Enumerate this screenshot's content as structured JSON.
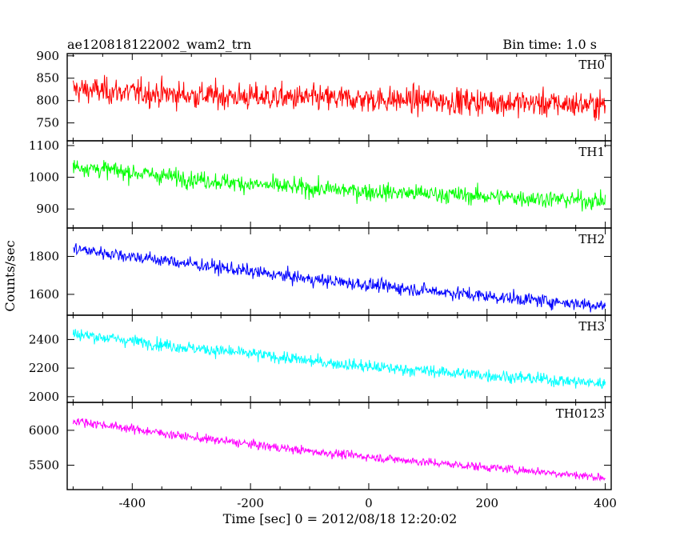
{
  "chart_data": {
    "type": "line",
    "title": "ae120818122002_wam2_trn",
    "subtitle": "Bin time: 1.0 s",
    "xlabel": "Time [sec] 0 = 2012/08/18 12:20:02",
    "ylabel": "Counts/sec",
    "xlim": [
      -510,
      410
    ],
    "xticks": [
      -400,
      -200,
      0,
      200,
      400
    ],
    "panels": [
      {
        "name": "TH0",
        "color": "#ff0000",
        "ylim": [
          710,
          905
        ],
        "yticks": [
          750,
          800,
          850,
          900
        ],
        "x": [
          -500,
          -400,
          -300,
          -200,
          -100,
          0,
          100,
          200,
          300,
          400
        ],
        "y": [
          825,
          818,
          812,
          808,
          805,
          803,
          800,
          797,
          793,
          790
        ],
        "noise": 38
      },
      {
        "name": "TH1",
        "color": "#00ff00",
        "ylim": [
          840,
          1115
        ],
        "yticks": [
          900,
          1000,
          1100
        ],
        "x": [
          -500,
          -400,
          -300,
          -200,
          -100,
          0,
          100,
          200,
          300,
          400
        ],
        "y": [
          1035,
          1015,
          995,
          978,
          965,
          955,
          948,
          940,
          932,
          925
        ],
        "noise": 35
      },
      {
        "name": "TH2",
        "color": "#0000ff",
        "ylim": [
          1490,
          1950
        ],
        "yticks": [
          1600,
          1800
        ],
        "x": [
          -500,
          -400,
          -300,
          -200,
          -100,
          0,
          100,
          200,
          300,
          400
        ],
        "y": [
          1840,
          1800,
          1760,
          1720,
          1680,
          1650,
          1620,
          1590,
          1565,
          1540
        ],
        "noise": 45
      },
      {
        "name": "TH3",
        "color": "#00ffff",
        "ylim": [
          1960,
          2570
        ],
        "yticks": [
          2000,
          2200,
          2400
        ],
        "x": [
          -500,
          -400,
          -300,
          -200,
          -100,
          0,
          100,
          200,
          300,
          400
        ],
        "y": [
          2440,
          2390,
          2340,
          2300,
          2250,
          2210,
          2180,
          2150,
          2120,
          2090
        ],
        "noise": 55
      },
      {
        "name": "TH0123",
        "color": "#ff00ff",
        "ylim": [
          5150,
          6400
        ],
        "yticks": [
          5500,
          6000
        ],
        "x": [
          -500,
          -400,
          -300,
          -200,
          -100,
          0,
          100,
          200,
          300,
          400
        ],
        "y": [
          6140,
          6020,
          5900,
          5800,
          5700,
          5620,
          5540,
          5470,
          5400,
          5320
        ],
        "noise": 80
      }
    ]
  }
}
